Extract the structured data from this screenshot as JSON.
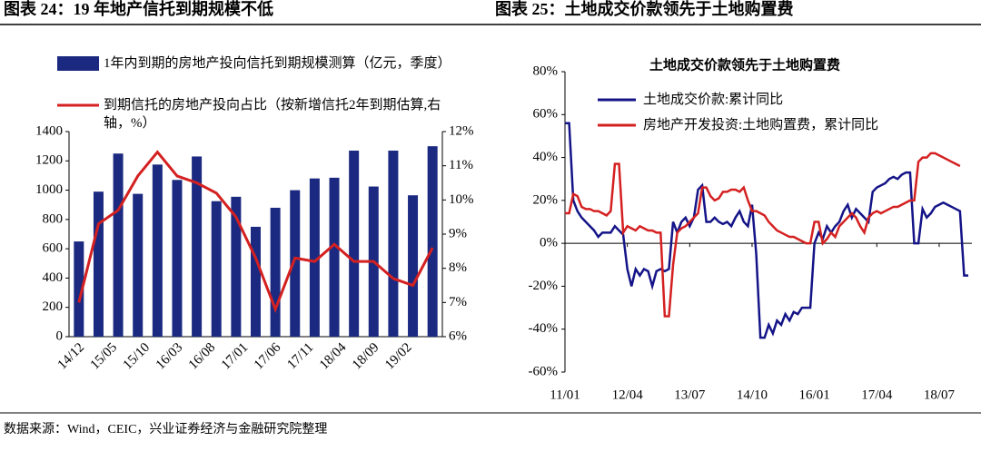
{
  "chart_data": [
    {
      "type": "bar",
      "caption": "图表 24：19 年地产信托到期规模不低",
      "categories": [
        null,
        null,
        null,
        null,
        null,
        null,
        null,
        null,
        null,
        null,
        null,
        null,
        null,
        null,
        null,
        null,
        null,
        null,
        null
      ],
      "xticks": [
        "14/12",
        "15/05",
        "15/10",
        "16/03",
        "16/08",
        "17/01",
        "17/06",
        "17/11",
        "18/04",
        "18/09",
        "19/02"
      ],
      "series": [
        {
          "name": "1年内到期的房地产投向信托到期规模测算（亿元，季度）",
          "color": "#1b2a80",
          "type": "bar",
          "values": [
            650,
            990,
            1250,
            975,
            1175,
            1070,
            1230,
            925,
            955,
            750,
            880,
            1000,
            1080,
            1085,
            1270,
            1025,
            1270,
            965,
            1300
          ]
        },
        {
          "name": "到期信托的房地产投向占比（按新增信托2年到期估算,右轴，%）",
          "color": "#d42020",
          "type": "line",
          "axis": "y2",
          "values": [
            7.0,
            9.3,
            9.7,
            10.7,
            11.4,
            10.7,
            10.5,
            10.2,
            9.5,
            8.3,
            6.8,
            8.3,
            8.2,
            8.7,
            8.2,
            8.2,
            7.7,
            7.5,
            8.6
          ]
        }
      ],
      "ylim": [
        0,
        1400
      ],
      "yticks": [
        0,
        200,
        400,
        600,
        800,
        1000,
        1200,
        1400
      ],
      "y2lim": [
        6,
        12
      ],
      "y2ticks": [
        {
          "value": 6,
          "label": "6%"
        },
        {
          "value": 7,
          "label": "7%"
        },
        {
          "value": 8,
          "label": "8%"
        },
        {
          "value": 9,
          "label": "9%"
        },
        {
          "value": 10,
          "label": "10%"
        },
        {
          "value": 11,
          "label": "11%"
        },
        {
          "value": 12,
          "label": "12%"
        }
      ]
    },
    {
      "type": "line",
      "caption": "图表 25：土地成交价款领先于土地购置费",
      "title": "土地成交价款领先于土地购置费",
      "x": [
        "11/01",
        "11/02",
        "11/03",
        "11/04",
        "11/05",
        "11/06",
        "11/07",
        "11/08",
        "11/09",
        "11/10",
        "11/11",
        "11/12",
        "12/01",
        "12/02",
        "12/03",
        "12/04",
        "12/05",
        "12/06",
        "12/07",
        "12/08",
        "12/09",
        "12/10",
        "12/11",
        "12/12",
        "13/01",
        "13/02",
        "13/03",
        "13/04",
        "13/05",
        "13/06",
        "13/07",
        "13/08",
        "13/09",
        "13/10",
        "13/11",
        "13/12",
        "14/01",
        "14/02",
        "14/03",
        "14/04",
        "14/05",
        "14/06",
        "14/07",
        "14/08",
        "14/09",
        "14/10",
        "14/11",
        "14/12",
        "15/01",
        "15/02",
        "15/03",
        "15/04",
        "15/05",
        "15/06",
        "15/07",
        "15/08",
        "15/09",
        "15/10",
        "15/11",
        "15/12",
        "16/01",
        "16/02",
        "16/03",
        "16/04",
        "16/05",
        "16/06",
        "16/07",
        "16/08",
        "16/09",
        "16/10",
        "16/11",
        "16/12",
        "17/01",
        "17/02",
        "17/03",
        "17/04",
        "17/05",
        "17/06",
        "17/07",
        "17/08",
        "17/09",
        "17/10",
        "17/11",
        "17/12",
        "18/01",
        "18/02",
        "18/03",
        "18/04",
        "18/05",
        "18/06",
        "18/07",
        "18/08",
        "18/09",
        "18/10",
        "18/11",
        "18/12",
        "19/01",
        "19/02"
      ],
      "xticks": [
        "11/01",
        "12/04",
        "13/07",
        "14/10",
        "16/01",
        "17/04",
        "18/07"
      ],
      "series": [
        {
          "name": "土地成交价款:累计同比",
          "color": "#141488",
          "values": [
            56,
            56,
            20,
            15,
            12,
            10,
            8,
            6,
            3,
            5,
            5,
            5,
            8,
            6,
            4,
            -12,
            -20,
            -12,
            -15,
            -12,
            -13,
            -20,
            -13,
            -12,
            -13,
            -12,
            10,
            5,
            10,
            12,
            8,
            12,
            25,
            27,
            10,
            10,
            12,
            10,
            9,
            10,
            8,
            12,
            15,
            10,
            8,
            18,
            -5,
            -44,
            -44,
            -38,
            -42,
            -36,
            -38,
            -33,
            -36,
            -32,
            -33,
            -30,
            -30,
            -30,
            0,
            5,
            2,
            8,
            5,
            8,
            10,
            15,
            18,
            12,
            16,
            14,
            12,
            10,
            24,
            26,
            27,
            28,
            30,
            31,
            30,
            32,
            33,
            33,
            0,
            0,
            16,
            12,
            14,
            17,
            18,
            19,
            18,
            17,
            16,
            15,
            -15,
            -15
          ]
        },
        {
          "name": "房地产开发投资:土地购置费，累计同比",
          "color": "#d42020",
          "values": [
            14,
            14,
            23,
            22,
            17,
            16,
            16,
            15,
            15,
            14,
            13,
            15,
            37,
            37,
            5,
            8,
            7,
            6,
            8,
            7,
            6,
            6,
            5,
            5,
            -34,
            -34,
            -10,
            5,
            7,
            8,
            10,
            12,
            14,
            26,
            26,
            22,
            20,
            21,
            24,
            24,
            25,
            25,
            24,
            26,
            20,
            15,
            15,
            14,
            13,
            10,
            8,
            6,
            5,
            4,
            3,
            3,
            2,
            1,
            0,
            0,
            10,
            10,
            0,
            2,
            5,
            3,
            8,
            10,
            12,
            14,
            12,
            8,
            5,
            12,
            14,
            15,
            14,
            15,
            16,
            17,
            17,
            18,
            19,
            20,
            20,
            38,
            40,
            40,
            42,
            42,
            41,
            40,
            39,
            38,
            37,
            36,
            null,
            null
          ]
        }
      ],
      "ylim": [
        -60,
        80
      ],
      "yticks": [
        {
          "value": -60,
          "label": "-60%"
        },
        {
          "value": -40,
          "label": "-40%"
        },
        {
          "value": -20,
          "label": "-20%"
        },
        {
          "value": 0,
          "label": "0%"
        },
        {
          "value": 20,
          "label": "20%"
        },
        {
          "value": 40,
          "label": "40%"
        },
        {
          "value": 60,
          "label": "60%"
        },
        {
          "value": 80,
          "label": "80%"
        }
      ]
    }
  ],
  "source": "数据来源：Wind，CEIC，兴业证券经济与金融研究院整理"
}
